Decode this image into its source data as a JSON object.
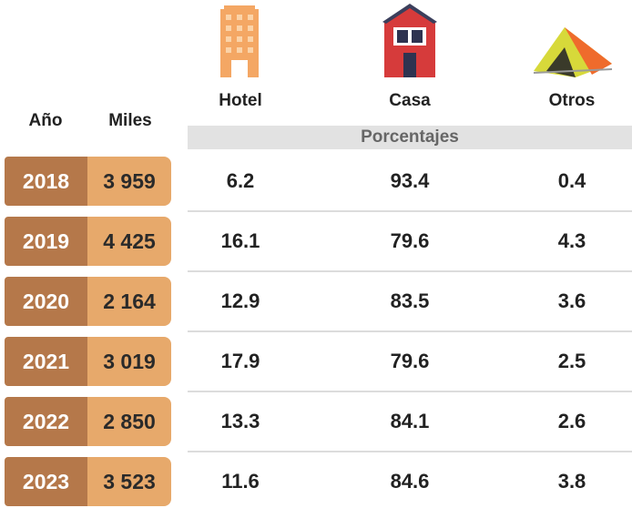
{
  "header": {
    "year": "Año",
    "thousands": "Miles",
    "hotel": "Hotel",
    "house": "Casa",
    "other": "Otros",
    "percentages": "Porcentajes"
  },
  "table": {
    "rows": [
      [
        "2018",
        "3 959",
        "6.2",
        "93.4",
        "0.4"
      ],
      [
        "2019",
        "4 425",
        "16.1",
        "79.6",
        "4.3"
      ],
      [
        "2020",
        "2 164",
        "12.9",
        "83.5",
        "3.6"
      ],
      [
        "2021",
        "3 019",
        "17.9",
        "79.6",
        "2.5"
      ],
      [
        "2022",
        "2 850",
        "13.3",
        "84.1",
        "2.6"
      ],
      [
        "2023",
        "3 523",
        "11.6",
        "84.6",
        "3.8"
      ]
    ]
  }
}
